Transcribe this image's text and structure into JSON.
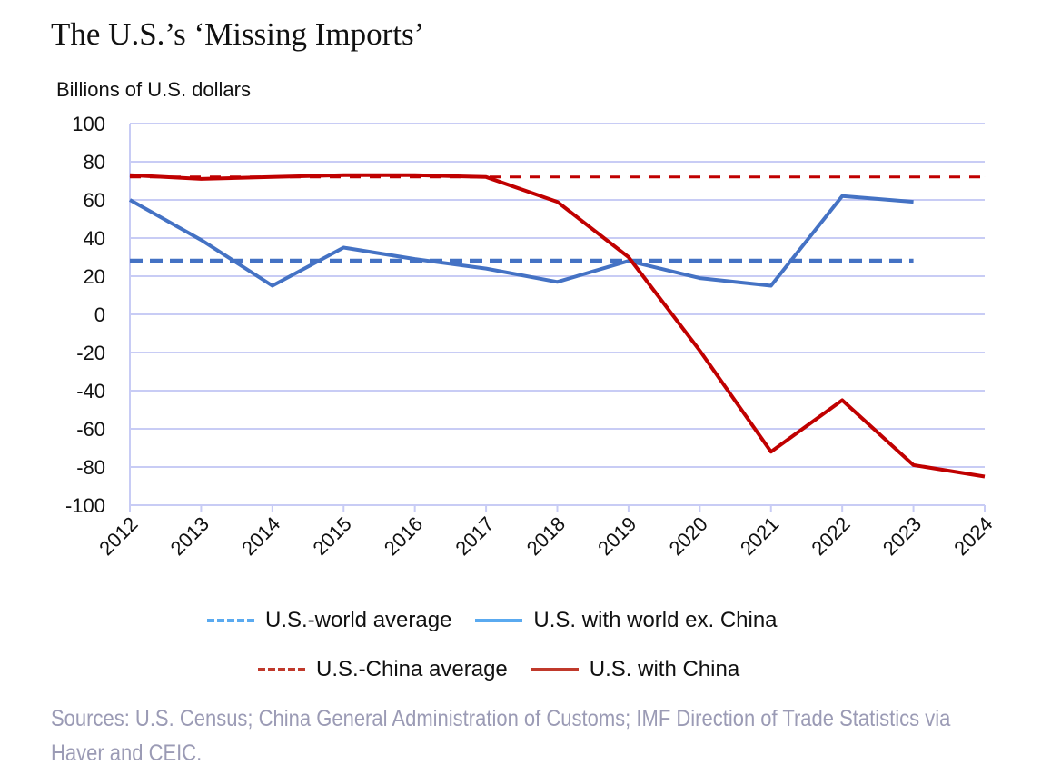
{
  "chart_data": {
    "type": "line",
    "title": "The U.S.’s ‘Missing Imports’",
    "ylabel": "Billions of U.S. dollars",
    "xlabel": "",
    "ylim": [
      -100,
      100
    ],
    "yticks": [
      100,
      80,
      60,
      40,
      20,
      0,
      -20,
      -40,
      -60,
      -80,
      -100
    ],
    "x": [
      "2012",
      "2013",
      "2014",
      "2015",
      "2016",
      "2017",
      "2018",
      "2019",
      "2020",
      "2021",
      "2022",
      "2023",
      "2024"
    ],
    "grid": true,
    "series": [
      {
        "name": "U.S.-world average",
        "style": "dashed",
        "color": "#4472c4",
        "legend_color": "#5aaaf0",
        "values": [
          28,
          28,
          28,
          28,
          28,
          28,
          28,
          28,
          28,
          28,
          28,
          28,
          null
        ]
      },
      {
        "name": "U.S. with world ex. China",
        "style": "solid",
        "color": "#4472c4",
        "legend_color": "#5aaaf0",
        "values": [
          60,
          39,
          15,
          35,
          29,
          24,
          17,
          28,
          19,
          15,
          62,
          59,
          null
        ]
      },
      {
        "name": "U.S.-China average",
        "style": "dashed",
        "color": "#c00000",
        "legend_color": "#c0392b",
        "values": [
          72,
          72,
          72,
          72,
          72,
          72,
          72,
          72,
          72,
          72,
          72,
          72,
          72
        ]
      },
      {
        "name": "U.S. with China",
        "style": "solid",
        "color": "#c00000",
        "legend_color": "#c0392b",
        "values": [
          73,
          71,
          72,
          73,
          73,
          72,
          59,
          30,
          -19,
          -72,
          -45,
          -79,
          -85
        ]
      }
    ],
    "legend_position": "bottom"
  },
  "sources": "Sources: U.S. Census; China General Administration of Customs; IMF Direction of Trade Statistics via Haver and CEIC."
}
